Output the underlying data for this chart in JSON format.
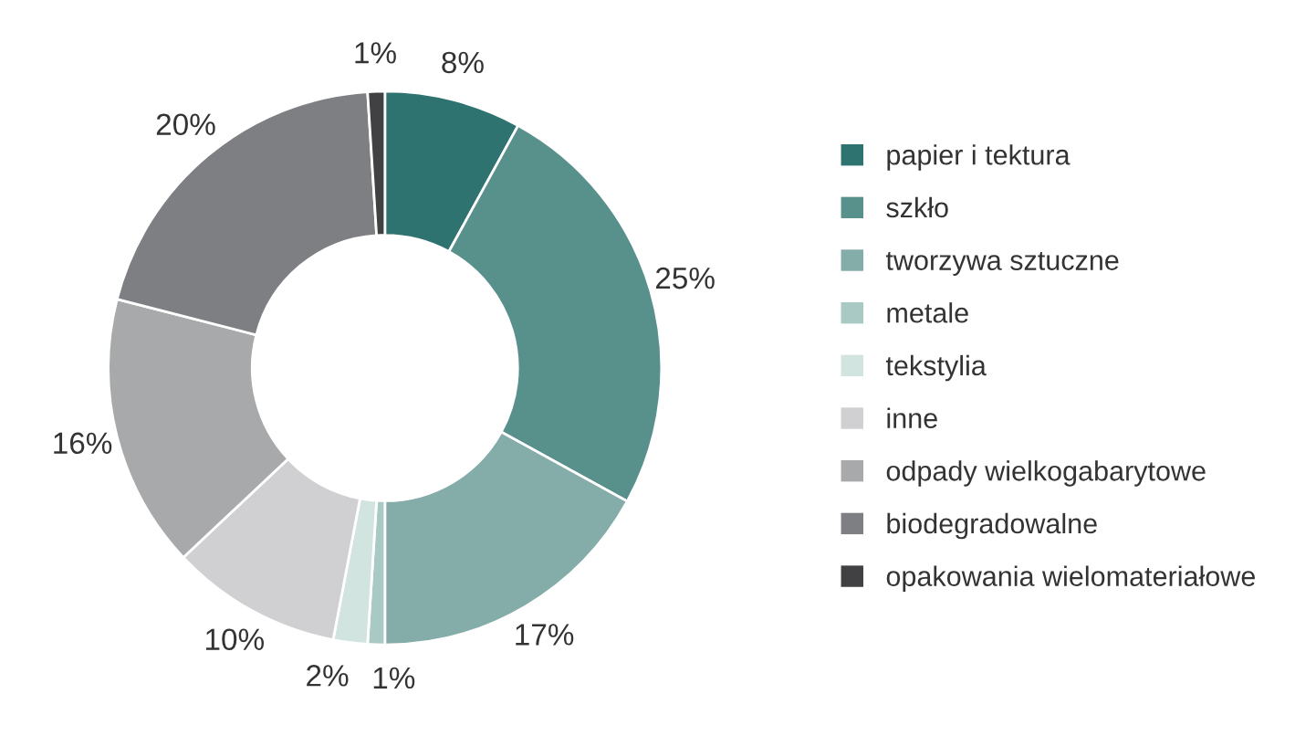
{
  "chart_data": {
    "type": "donut",
    "categories": [
      "papier i tektura",
      "szkło",
      "tworzywa sztuczne",
      "metale",
      "tekstylia",
      "inne",
      "odpady wielkogabarytowe",
      "biodegradowalne",
      "opakowania wielomateriałowe"
    ],
    "values": [
      8,
      25,
      17,
      1,
      2,
      10,
      16,
      20,
      1
    ],
    "colors": [
      "#2e7370",
      "#58908b",
      "#84aca8",
      "#a9c9c4",
      "#d2e4e0",
      "#d0d0d2",
      "#a8a9ab",
      "#7e7f82",
      "#414143"
    ],
    "value_labels": [
      "8%",
      "25%",
      "17%",
      "1%",
      "2%",
      "10%",
      "16%",
      "20%",
      "1%"
    ],
    "legend": "right"
  }
}
